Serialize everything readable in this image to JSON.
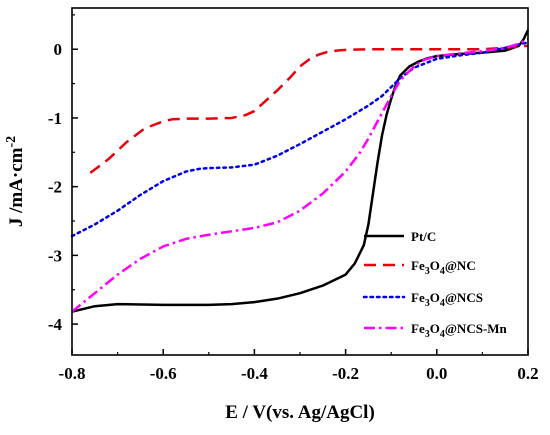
{
  "chart_data": {
    "type": "line",
    "xlabel": "E / V(vs. Ag/AgCl)",
    "ylabel": "J /mA·cm",
    "ylabel_sup": "-2",
    "xlim": [
      -0.8,
      0.2
    ],
    "ylim": [
      -4.45,
      0.6
    ],
    "x_ticks": [
      -0.8,
      -0.6,
      -0.4,
      -0.2,
      0.0,
      0.2
    ],
    "x_tick_labels": [
      "-0.8",
      "-0.6",
      "-0.4",
      "-0.2",
      "0.0",
      "0.2"
    ],
    "y_ticks": [
      0,
      -1,
      -2,
      -3,
      -4
    ],
    "y_tick_labels": [
      "0",
      "-1",
      "-2",
      "-3",
      "-4"
    ],
    "legend_position": "bottom-right",
    "grid": false,
    "series": [
      {
        "name": "Pt/C",
        "legend": {
          "pre": "Pt/C",
          "sub": "",
          "post": ""
        },
        "color": "#000000",
        "dash": "solid",
        "x": [
          -0.8,
          -0.75,
          -0.7,
          -0.6,
          -0.5,
          -0.45,
          -0.4,
          -0.35,
          -0.3,
          -0.25,
          -0.2,
          -0.18,
          -0.16,
          -0.15,
          -0.14,
          -0.13,
          -0.12,
          -0.11,
          -0.1,
          -0.09,
          -0.08,
          -0.06,
          -0.04,
          -0.02,
          0.0,
          0.05,
          0.1,
          0.15,
          0.18,
          0.19,
          0.2
        ],
        "y": [
          -3.82,
          -3.74,
          -3.71,
          -3.72,
          -3.72,
          -3.71,
          -3.68,
          -3.63,
          -3.55,
          -3.44,
          -3.28,
          -3.12,
          -2.85,
          -2.55,
          -2.1,
          -1.65,
          -1.25,
          -0.95,
          -0.72,
          -0.52,
          -0.38,
          -0.25,
          -0.18,
          -0.13,
          -0.1,
          -0.07,
          -0.05,
          -0.02,
          0.05,
          0.14,
          0.28
        ]
      },
      {
        "name": "Fe3O4@NC",
        "legend": {
          "pre": "Fe",
          "sub": "3",
          "mid": "O",
          "sub2": "4",
          "post": "@NC"
        },
        "color": "#e8000b",
        "dash": "dashed",
        "x": [
          -0.76,
          -0.72,
          -0.68,
          -0.64,
          -0.6,
          -0.58,
          -0.55,
          -0.5,
          -0.45,
          -0.42,
          -0.4,
          -0.38,
          -0.35,
          -0.32,
          -0.3,
          -0.28,
          -0.26,
          -0.24,
          -0.22,
          -0.2,
          -0.15,
          -0.1,
          -0.05,
          0.0,
          0.05,
          0.1,
          0.15,
          0.2
        ],
        "y": [
          -1.8,
          -1.6,
          -1.35,
          -1.15,
          -1.05,
          -1.02,
          -1.01,
          -1.01,
          -1.0,
          -0.96,
          -0.9,
          -0.78,
          -0.6,
          -0.4,
          -0.25,
          -0.15,
          -0.08,
          -0.04,
          -0.02,
          -0.01,
          0.0,
          0.0,
          0.0,
          0.0,
          0.0,
          0.0,
          0.02,
          0.05
        ]
      },
      {
        "name": "Fe3O4@NCS",
        "legend": {
          "pre": "Fe",
          "sub": "3",
          "mid": "O",
          "sub2": "4",
          "post": "@NCS"
        },
        "color": "#0000e6",
        "dash": "dotted",
        "x": [
          -0.8,
          -0.75,
          -0.7,
          -0.65,
          -0.6,
          -0.55,
          -0.52,
          -0.5,
          -0.45,
          -0.4,
          -0.35,
          -0.3,
          -0.25,
          -0.2,
          -0.15,
          -0.12,
          -0.1,
          -0.08,
          -0.05,
          0.0,
          0.05,
          0.1,
          0.15,
          0.2
        ],
        "y": [
          -2.72,
          -2.55,
          -2.35,
          -2.12,
          -1.92,
          -1.78,
          -1.74,
          -1.73,
          -1.72,
          -1.68,
          -1.55,
          -1.38,
          -1.2,
          -1.02,
          -0.82,
          -0.68,
          -0.55,
          -0.42,
          -0.27,
          -0.14,
          -0.09,
          -0.05,
          0.02,
          0.1
        ]
      },
      {
        "name": "Fe3O4@NCS-Mn",
        "legend": {
          "pre": "Fe",
          "sub": "3",
          "mid": "O",
          "sub2": "4",
          "post": "@NCS-Mn"
        },
        "color": "#ff00ff",
        "dash": "dashdot",
        "x": [
          -0.8,
          -0.75,
          -0.7,
          -0.65,
          -0.6,
          -0.55,
          -0.5,
          -0.45,
          -0.4,
          -0.35,
          -0.3,
          -0.25,
          -0.2,
          -0.17,
          -0.15,
          -0.13,
          -0.1,
          -0.08,
          -0.05,
          -0.03,
          0.0,
          0.05,
          0.1,
          0.15,
          0.18,
          0.2
        ],
        "y": [
          -3.82,
          -3.55,
          -3.28,
          -3.05,
          -2.87,
          -2.76,
          -2.7,
          -2.65,
          -2.6,
          -2.52,
          -2.35,
          -2.1,
          -1.78,
          -1.52,
          -1.3,
          -1.05,
          -0.68,
          -0.45,
          -0.25,
          -0.16,
          -0.1,
          -0.06,
          -0.03,
          0.02,
          0.08,
          0.15
        ]
      }
    ]
  }
}
